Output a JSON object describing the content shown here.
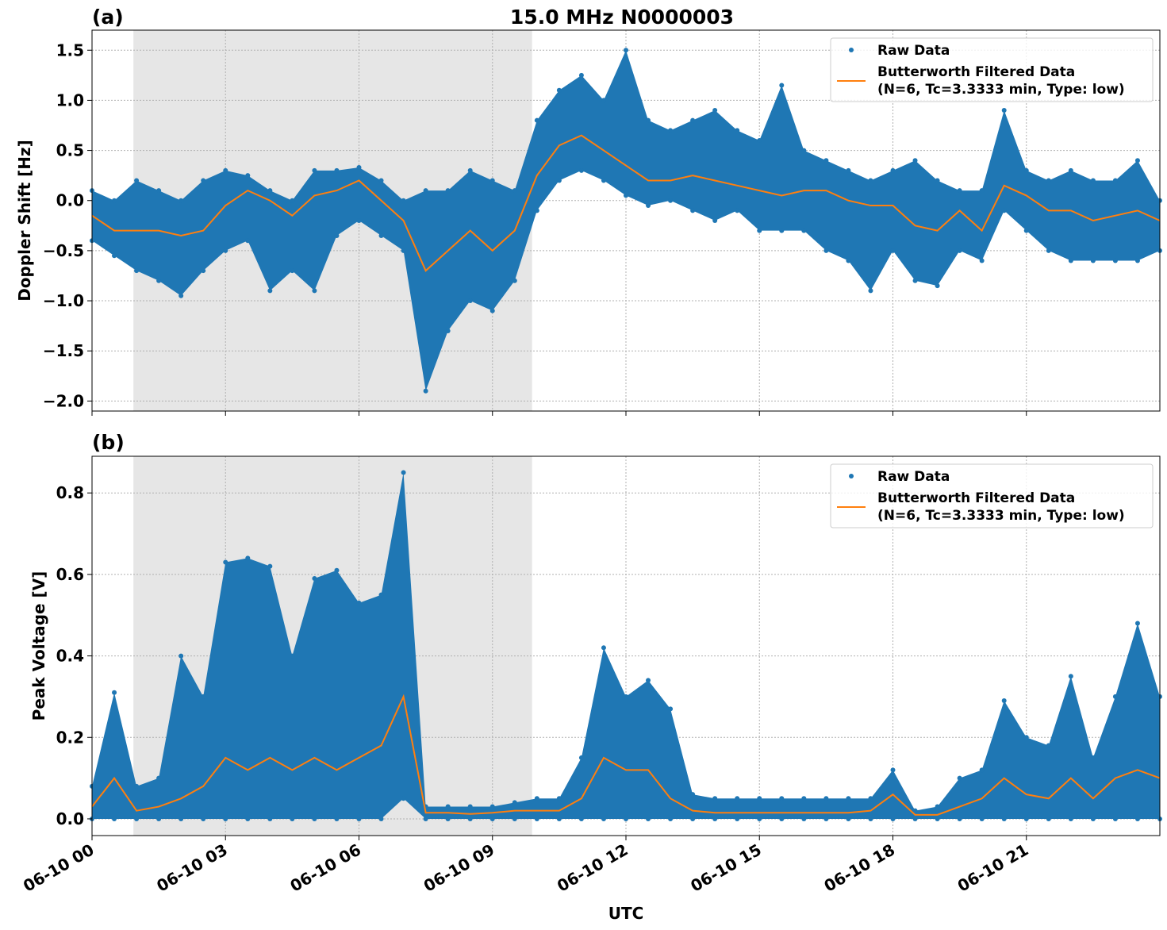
{
  "chart_data": [
    {
      "type": "scatter",
      "panel_label": "(a)",
      "title": "15.0 MHz N0000003",
      "xlabel": "",
      "ylabel": "Doppler Shift [Hz]",
      "ylim": [
        -2.1,
        1.7
      ],
      "xlim_hours": [
        0,
        24
      ],
      "yticks": [
        -2.0,
        -1.5,
        -1.0,
        -0.5,
        0.0,
        0.5,
        1.0,
        1.5
      ],
      "ytick_labels": [
        "−2.0",
        "−1.5",
        "−1.0",
        "−0.5",
        "0.0",
        "0.5",
        "1.0",
        "1.5"
      ],
      "grid": true,
      "shaded_interval_hours": [
        0.93,
        9.89
      ],
      "legend": {
        "placement": "top-right",
        "entries": [
          "Raw Data",
          "Butterworth Filtered Data",
          "(N=6, Tc=3.3333 min, Type: low)"
        ]
      },
      "x_hours": [
        0,
        0.5,
        1,
        1.5,
        2,
        2.5,
        3,
        3.5,
        4,
        4.5,
        5,
        5.5,
        6,
        6.5,
        7,
        7.5,
        8,
        8.5,
        9,
        9.5,
        10,
        10.5,
        11,
        11.5,
        12,
        12.5,
        13,
        13.5,
        14,
        14.5,
        15,
        15.5,
        16,
        16.5,
        17,
        17.5,
        18,
        18.5,
        19,
        19.5,
        20,
        20.5,
        21,
        21.5,
        22,
        22.5,
        23,
        23.5,
        24
      ],
      "series": [
        {
          "name": "Butterworth Filtered Data",
          "color": "#ff7f0e",
          "values": [
            -0.15,
            -0.3,
            -0.3,
            -0.3,
            -0.35,
            -0.3,
            -0.05,
            0.1,
            0.0,
            -0.15,
            0.05,
            0.1,
            0.2,
            0.0,
            -0.2,
            -0.7,
            -0.5,
            -0.3,
            -0.5,
            -0.3,
            0.25,
            0.55,
            0.65,
            0.5,
            0.35,
            0.2,
            0.2,
            0.25,
            0.2,
            0.15,
            0.1,
            0.05,
            0.1,
            0.1,
            0.0,
            -0.05,
            -0.05,
            -0.25,
            -0.3,
            -0.1,
            -0.3,
            0.15,
            0.05,
            -0.1,
            -0.1,
            -0.2,
            -0.15,
            -0.1,
            -0.2
          ]
        },
        {
          "name": "Raw Data",
          "color": "#1f77b4",
          "min": [
            -0.4,
            -0.55,
            -0.7,
            -0.8,
            -0.95,
            -0.7,
            -0.5,
            -0.4,
            -0.9,
            -0.7,
            -0.9,
            -0.35,
            -0.2,
            -0.35,
            -0.5,
            -1.9,
            -1.3,
            -1.0,
            -1.1,
            -0.8,
            -0.1,
            0.2,
            0.3,
            0.2,
            0.05,
            -0.05,
            0.0,
            -0.1,
            -0.2,
            -0.1,
            -0.3,
            -0.3,
            -0.3,
            -0.5,
            -0.6,
            -0.9,
            -0.5,
            -0.8,
            -0.85,
            -0.5,
            -0.6,
            -0.1,
            -0.3,
            -0.5,
            -0.6,
            -0.6,
            -0.6,
            -0.6,
            -0.5
          ],
          "max": [
            0.1,
            0.0,
            0.2,
            0.1,
            0.0,
            0.2,
            0.3,
            0.25,
            0.1,
            0.0,
            0.3,
            0.3,
            0.33,
            0.2,
            0.0,
            0.1,
            0.1,
            0.3,
            0.2,
            0.1,
            0.8,
            1.1,
            1.25,
            1.0,
            1.5,
            0.8,
            0.7,
            0.8,
            0.9,
            0.7,
            0.6,
            1.15,
            0.5,
            0.4,
            0.3,
            0.2,
            0.3,
            0.4,
            0.2,
            0.1,
            0.1,
            0.9,
            0.3,
            0.2,
            0.3,
            0.2,
            0.2,
            0.4,
            0.0
          ]
        }
      ]
    },
    {
      "type": "scatter",
      "panel_label": "(b)",
      "title": "",
      "xlabel": "UTC",
      "ylabel": "Peak Voltage [V]",
      "ylim": [
        -0.041,
        0.89
      ],
      "xlim_hours": [
        0,
        24
      ],
      "yticks": [
        0.0,
        0.2,
        0.4,
        0.6,
        0.8
      ],
      "ytick_labels": [
        "0.0",
        "0.2",
        "0.4",
        "0.6",
        "0.8"
      ],
      "xticks_hours": [
        0,
        3,
        6,
        9,
        12,
        15,
        18,
        21
      ],
      "xtick_labels": [
        "06-10 00",
        "06-10 03",
        "06-10 06",
        "06-10 09",
        "06-10 12",
        "06-10 15",
        "06-10 18",
        "06-10 21"
      ],
      "grid": true,
      "shaded_interval_hours": [
        0.93,
        9.89
      ],
      "legend": {
        "placement": "top-right",
        "entries": [
          "Raw Data",
          "Butterworth Filtered Data",
          "(N=6, Tc=3.3333 min, Type: low)"
        ]
      },
      "x_hours": [
        0,
        0.5,
        1,
        1.5,
        2,
        2.5,
        3,
        3.5,
        4,
        4.5,
        5,
        5.5,
        6,
        6.5,
        7,
        7.5,
        8,
        8.5,
        9,
        9.5,
        10,
        10.5,
        11,
        11.5,
        12,
        12.5,
        13,
        13.5,
        14,
        14.5,
        15,
        15.5,
        16,
        16.5,
        17,
        17.5,
        18,
        18.5,
        19,
        19.5,
        20,
        20.5,
        21,
        21.5,
        22,
        22.5,
        23,
        23.5,
        24
      ],
      "series": [
        {
          "name": "Butterworth Filtered Data",
          "color": "#ff7f0e",
          "values": [
            0.03,
            0.1,
            0.02,
            0.03,
            0.05,
            0.08,
            0.15,
            0.12,
            0.15,
            0.12,
            0.15,
            0.12,
            0.15,
            0.18,
            0.3,
            0.015,
            0.015,
            0.012,
            0.015,
            0.02,
            0.02,
            0.02,
            0.05,
            0.15,
            0.12,
            0.12,
            0.05,
            0.02,
            0.015,
            0.015,
            0.015,
            0.015,
            0.015,
            0.015,
            0.015,
            0.02,
            0.06,
            0.01,
            0.01,
            0.03,
            0.05,
            0.1,
            0.06,
            0.05,
            0.1,
            0.05,
            0.1,
            0.12,
            0.1
          ]
        },
        {
          "name": "Raw Data",
          "color": "#1f77b4",
          "min": [
            0,
            0,
            0,
            0,
            0,
            0,
            0,
            0,
            0,
            0,
            0,
            0,
            0,
            0,
            0.05,
            0,
            0,
            0,
            0,
            0,
            0,
            0,
            0,
            0,
            0,
            0,
            0,
            0,
            0,
            0,
            0,
            0,
            0,
            0,
            0,
            0,
            0,
            0,
            0,
            0,
            0,
            0,
            0,
            0,
            0,
            0,
            0,
            0,
            0
          ],
          "max": [
            0.08,
            0.31,
            0.08,
            0.1,
            0.4,
            0.3,
            0.63,
            0.64,
            0.62,
            0.4,
            0.59,
            0.61,
            0.53,
            0.55,
            0.85,
            0.03,
            0.03,
            0.03,
            0.03,
            0.04,
            0.05,
            0.05,
            0.15,
            0.42,
            0.3,
            0.34,
            0.27,
            0.06,
            0.05,
            0.05,
            0.05,
            0.05,
            0.05,
            0.05,
            0.05,
            0.05,
            0.12,
            0.02,
            0.03,
            0.1,
            0.12,
            0.29,
            0.2,
            0.18,
            0.35,
            0.15,
            0.3,
            0.48,
            0.3
          ]
        }
      ]
    }
  ]
}
